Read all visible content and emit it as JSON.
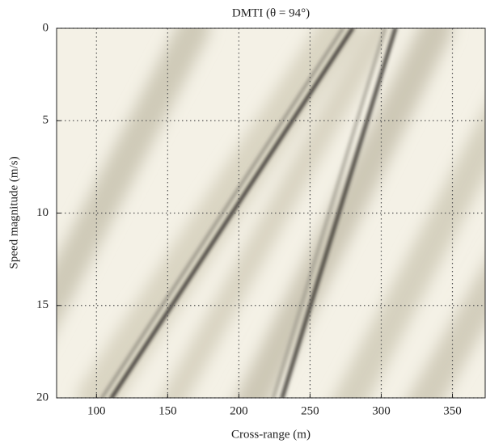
{
  "chart_data": {
    "type": "image",
    "title": "DMTI (θ = 94°)",
    "xlabel": "Cross-range (m)",
    "ylabel": "Speed magnitude (m/s)",
    "xlim": [
      72,
      373
    ],
    "xticks": [
      100,
      150,
      200,
      250,
      300,
      350
    ],
    "ylim": [
      0,
      20
    ],
    "yticks": [
      0,
      5,
      10,
      15,
      20
    ],
    "y_reversed": true,
    "grid": true
  }
}
